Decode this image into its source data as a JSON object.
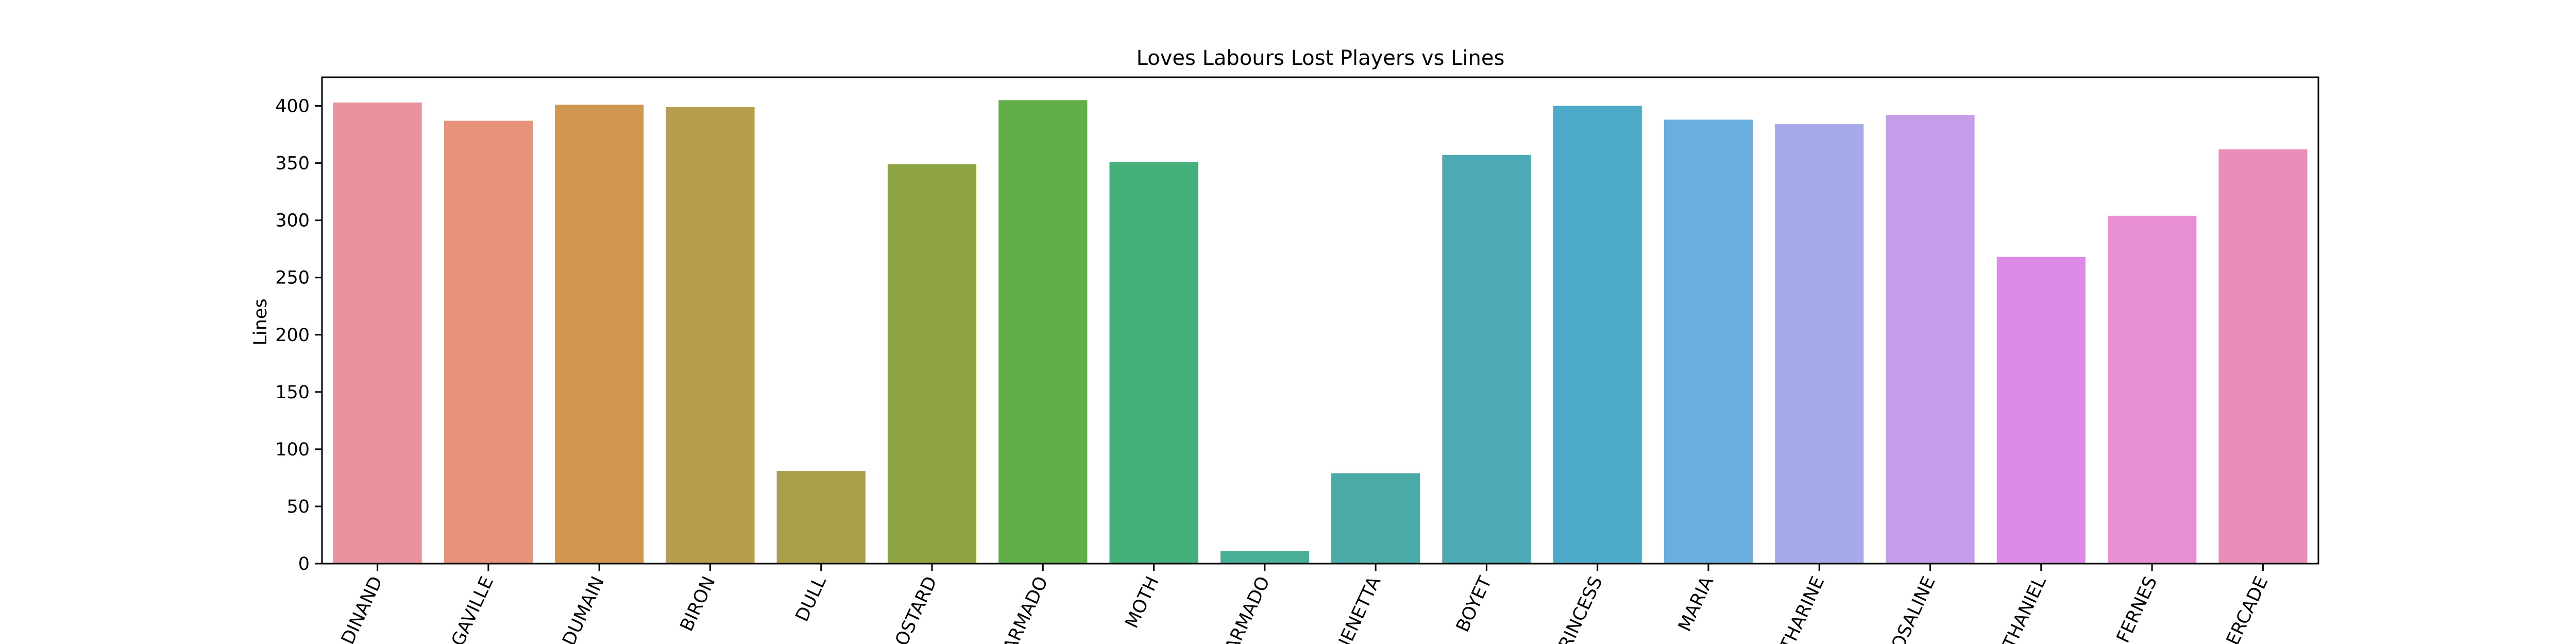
{
  "chart_data": {
    "type": "bar",
    "title": "Loves Labours Lost Players vs Lines",
    "xlabel": "",
    "ylabel": "Lines",
    "ylim": [
      0,
      425
    ],
    "yticks": [
      0,
      50,
      100,
      150,
      200,
      250,
      300,
      350,
      400
    ],
    "grid": false,
    "categories": [
      "FERDINAND",
      "LONGAVILLE",
      "DUMAIN",
      "BIRON",
      "DULL",
      "COSTARD",
      "DON ADRIANO DE ARMADO",
      "MOTH",
      "DON ADRIANO DE ARMADO",
      "JAQUENETTA",
      "BOYET",
      "PRINCESS",
      "MARIA",
      "KATHARINE",
      "ROSALINE",
      "SIR NATHANIEL",
      "HOLOFERNES",
      "MERCADE"
    ],
    "tick_labels": [
      "DINAND",
      "GAVILLE",
      "DUMAIN",
      "BIRON",
      "DULL",
      "OSTARD",
      "ARMADO",
      "MOTH",
      "ARMADO",
      "JENETTA",
      "BOYET",
      "RINCESS",
      "MARIA",
      "THARINE",
      "OSALINE",
      "THANIEL",
      "FERNES",
      "ERCADE"
    ],
    "values": [
      403,
      387,
      401,
      399,
      81,
      349,
      405,
      351,
      11,
      79,
      357,
      400,
      388,
      384,
      392,
      268,
      304,
      362
    ],
    "colors": [
      "#e9939f",
      "#e8927a",
      "#d19650",
      "#b59e4e",
      "#a8a04a",
      "#8ea542",
      "#61ae4b",
      "#46b07a",
      "#48ae96",
      "#4aaaa5",
      "#4baab3",
      "#4eaac9",
      "#6aaee0",
      "#a6aaea",
      "#c49ce9",
      "#de8be7",
      "#e88fd2",
      "#e98eba"
    ]
  }
}
